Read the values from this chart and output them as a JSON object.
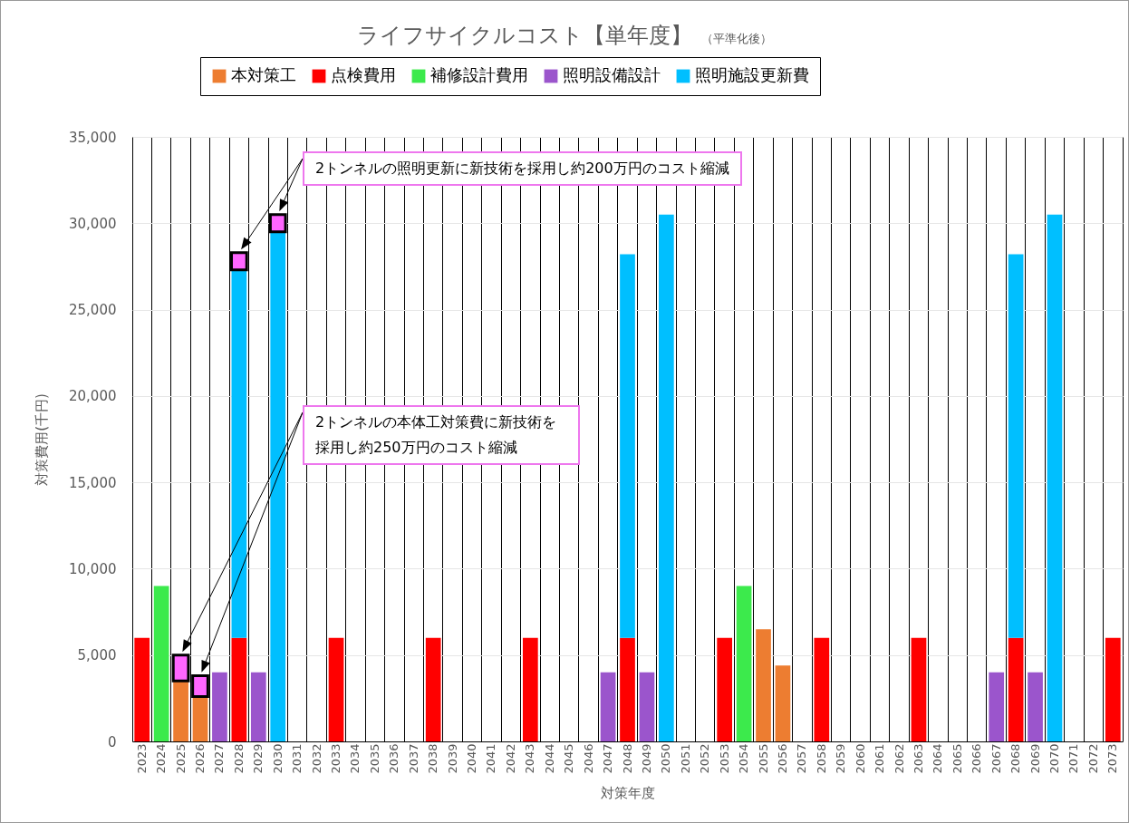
{
  "chart_data": {
    "type": "bar",
    "title": "ライフサイクルコスト【単年度】",
    "subtitle": "（平準化後）",
    "xlabel": "対策年度",
    "ylabel": "対策費用(千円)",
    "categories": [
      "2023",
      "2024",
      "2025",
      "2026",
      "2027",
      "2028",
      "2029",
      "2030",
      "2031",
      "2032",
      "2033",
      "2034",
      "2035",
      "2036",
      "2037",
      "2038",
      "2039",
      "2040",
      "2041",
      "2042",
      "2043",
      "2044",
      "2045",
      "2046",
      "2047",
      "2048",
      "2049",
      "2050",
      "2051",
      "2052",
      "2053",
      "2054",
      "2055",
      "2056",
      "2057",
      "2058",
      "2059",
      "2060",
      "2061",
      "2062",
      "2063",
      "2064",
      "2065",
      "2066",
      "2067",
      "2068",
      "2069",
      "2070",
      "2071",
      "2072",
      "2073"
    ],
    "stacked": true,
    "series": [
      {
        "name": "本対策工",
        "color": "#ed7d31",
        "values": [
          null,
          null,
          3500,
          2600,
          null,
          null,
          null,
          null,
          null,
          null,
          null,
          null,
          null,
          null,
          null,
          null,
          null,
          null,
          null,
          null,
          null,
          null,
          null,
          null,
          null,
          null,
          null,
          null,
          null,
          null,
          null,
          null,
          6500,
          4400,
          null,
          null,
          null,
          null,
          null,
          null,
          null,
          null,
          null,
          null,
          null,
          null,
          null,
          null,
          null,
          null,
          null
        ]
      },
      {
        "name": "点検費用",
        "color": "#ff0000",
        "values": [
          6000,
          null,
          null,
          null,
          null,
          6000,
          null,
          null,
          null,
          null,
          6000,
          null,
          null,
          null,
          null,
          6000,
          null,
          null,
          null,
          null,
          6000,
          null,
          null,
          null,
          null,
          6000,
          null,
          null,
          null,
          null,
          6000,
          null,
          null,
          null,
          null,
          6000,
          null,
          null,
          null,
          null,
          6000,
          null,
          null,
          null,
          null,
          6000,
          null,
          null,
          null,
          null,
          6000
        ]
      },
      {
        "name": "補修設計費用",
        "color": "#3cea4c",
        "values": [
          null,
          9000,
          null,
          null,
          null,
          null,
          null,
          null,
          null,
          null,
          null,
          null,
          null,
          null,
          null,
          null,
          null,
          null,
          null,
          null,
          null,
          null,
          null,
          null,
          null,
          null,
          null,
          null,
          null,
          null,
          null,
          9000,
          null,
          null,
          null,
          null,
          null,
          null,
          null,
          null,
          null,
          null,
          null,
          null,
          null,
          null,
          null,
          null,
          null,
          null,
          null
        ]
      },
      {
        "name": "照明設備設計",
        "color": "#9b55cc",
        "values": [
          null,
          null,
          null,
          null,
          4000,
          null,
          4000,
          null,
          null,
          null,
          null,
          null,
          null,
          null,
          null,
          null,
          null,
          null,
          null,
          null,
          null,
          null,
          null,
          null,
          4000,
          null,
          4000,
          null,
          null,
          null,
          null,
          null,
          null,
          null,
          null,
          null,
          null,
          null,
          null,
          null,
          null,
          null,
          null,
          null,
          4000,
          null,
          4000,
          null,
          null,
          null,
          null
        ]
      },
      {
        "name": "照明施設更新費",
        "color": "#00bfff",
        "values": [
          null,
          null,
          null,
          null,
          null,
          21300,
          null,
          29500,
          null,
          null,
          null,
          null,
          null,
          null,
          null,
          null,
          null,
          null,
          null,
          null,
          null,
          null,
          null,
          null,
          null,
          22200,
          null,
          30500,
          null,
          null,
          null,
          null,
          null,
          null,
          null,
          null,
          null,
          null,
          null,
          null,
          null,
          null,
          null,
          null,
          null,
          22200,
          null,
          30500,
          null,
          null,
          null
        ]
      },
      {
        "color": "#ff66ff",
        "values": [
          null,
          null,
          1500,
          1200,
          null,
          1000,
          null,
          1000,
          null,
          null,
          null,
          null,
          null,
          null,
          null,
          null,
          null,
          null,
          null,
          null,
          null,
          null,
          null,
          null,
          null,
          null,
          null,
          null,
          null,
          null,
          null,
          null,
          null,
          null,
          null,
          null,
          null,
          null,
          null,
          null,
          null,
          null,
          null,
          null,
          null,
          null,
          null,
          null,
          null,
          null,
          null
        ]
      }
    ],
    "ylim": [
      0,
      35000
    ],
    "yticks": [
      0,
      {
        "value": 5000,
        "label": "5,000"
      },
      {
        "value": 10000,
        "label": "10,000"
      },
      {
        "value": 15000,
        "label": "15,000"
      },
      {
        "value": 20000,
        "label": "20,000"
      },
      {
        "value": 25000,
        "label": "25,000"
      },
      {
        "value": 30000,
        "label": "30,000"
      },
      {
        "value": 35000,
        "label": "35,000"
      }
    ],
    "grid": true,
    "legend": "top",
    "annotations": [
      "2トンネルの照明更新に新技術を採用し約200万円のコスト縮減",
      "2トンネルの本体工対策費に新技術を採用し約250万円のコスト縮減"
    ]
  }
}
